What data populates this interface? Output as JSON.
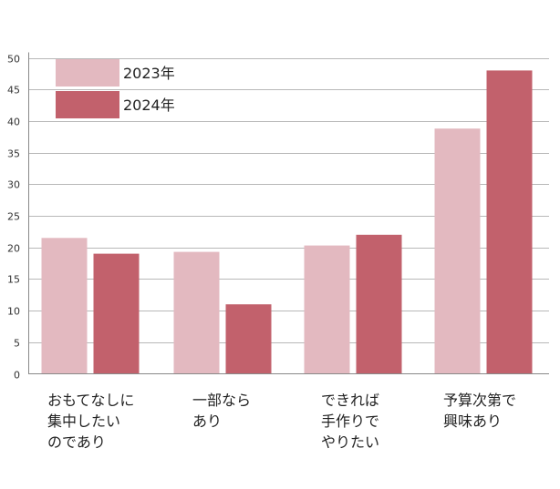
{
  "chart_data": {
    "type": "bar",
    "categories": [
      [
        "おもてなしに",
        "集中したい",
        "のであり"
      ],
      [
        "一部なら",
        "あり"
      ],
      [
        "できれば",
        "手作りで",
        "やりたい"
      ],
      [
        "予算次第で",
        "興味あり"
      ]
    ],
    "series": [
      {
        "name": "2023年",
        "color": "#e3b9c0",
        "values": [
          21.5,
          19.3,
          20.3,
          38.8
        ]
      },
      {
        "name": "2024年",
        "color": "#c2616c",
        "values": [
          19.0,
          11.0,
          22.0,
          48.0
        ]
      }
    ],
    "yticks": [
      "0",
      "5",
      "10",
      "15",
      "20",
      "25",
      "30",
      "35",
      "40",
      "45",
      "50"
    ],
    "ylim": [
      0,
      50
    ],
    "grid": true,
    "legend_position": "top-left",
    "title": "",
    "xlabel": "",
    "ylabel": ""
  }
}
